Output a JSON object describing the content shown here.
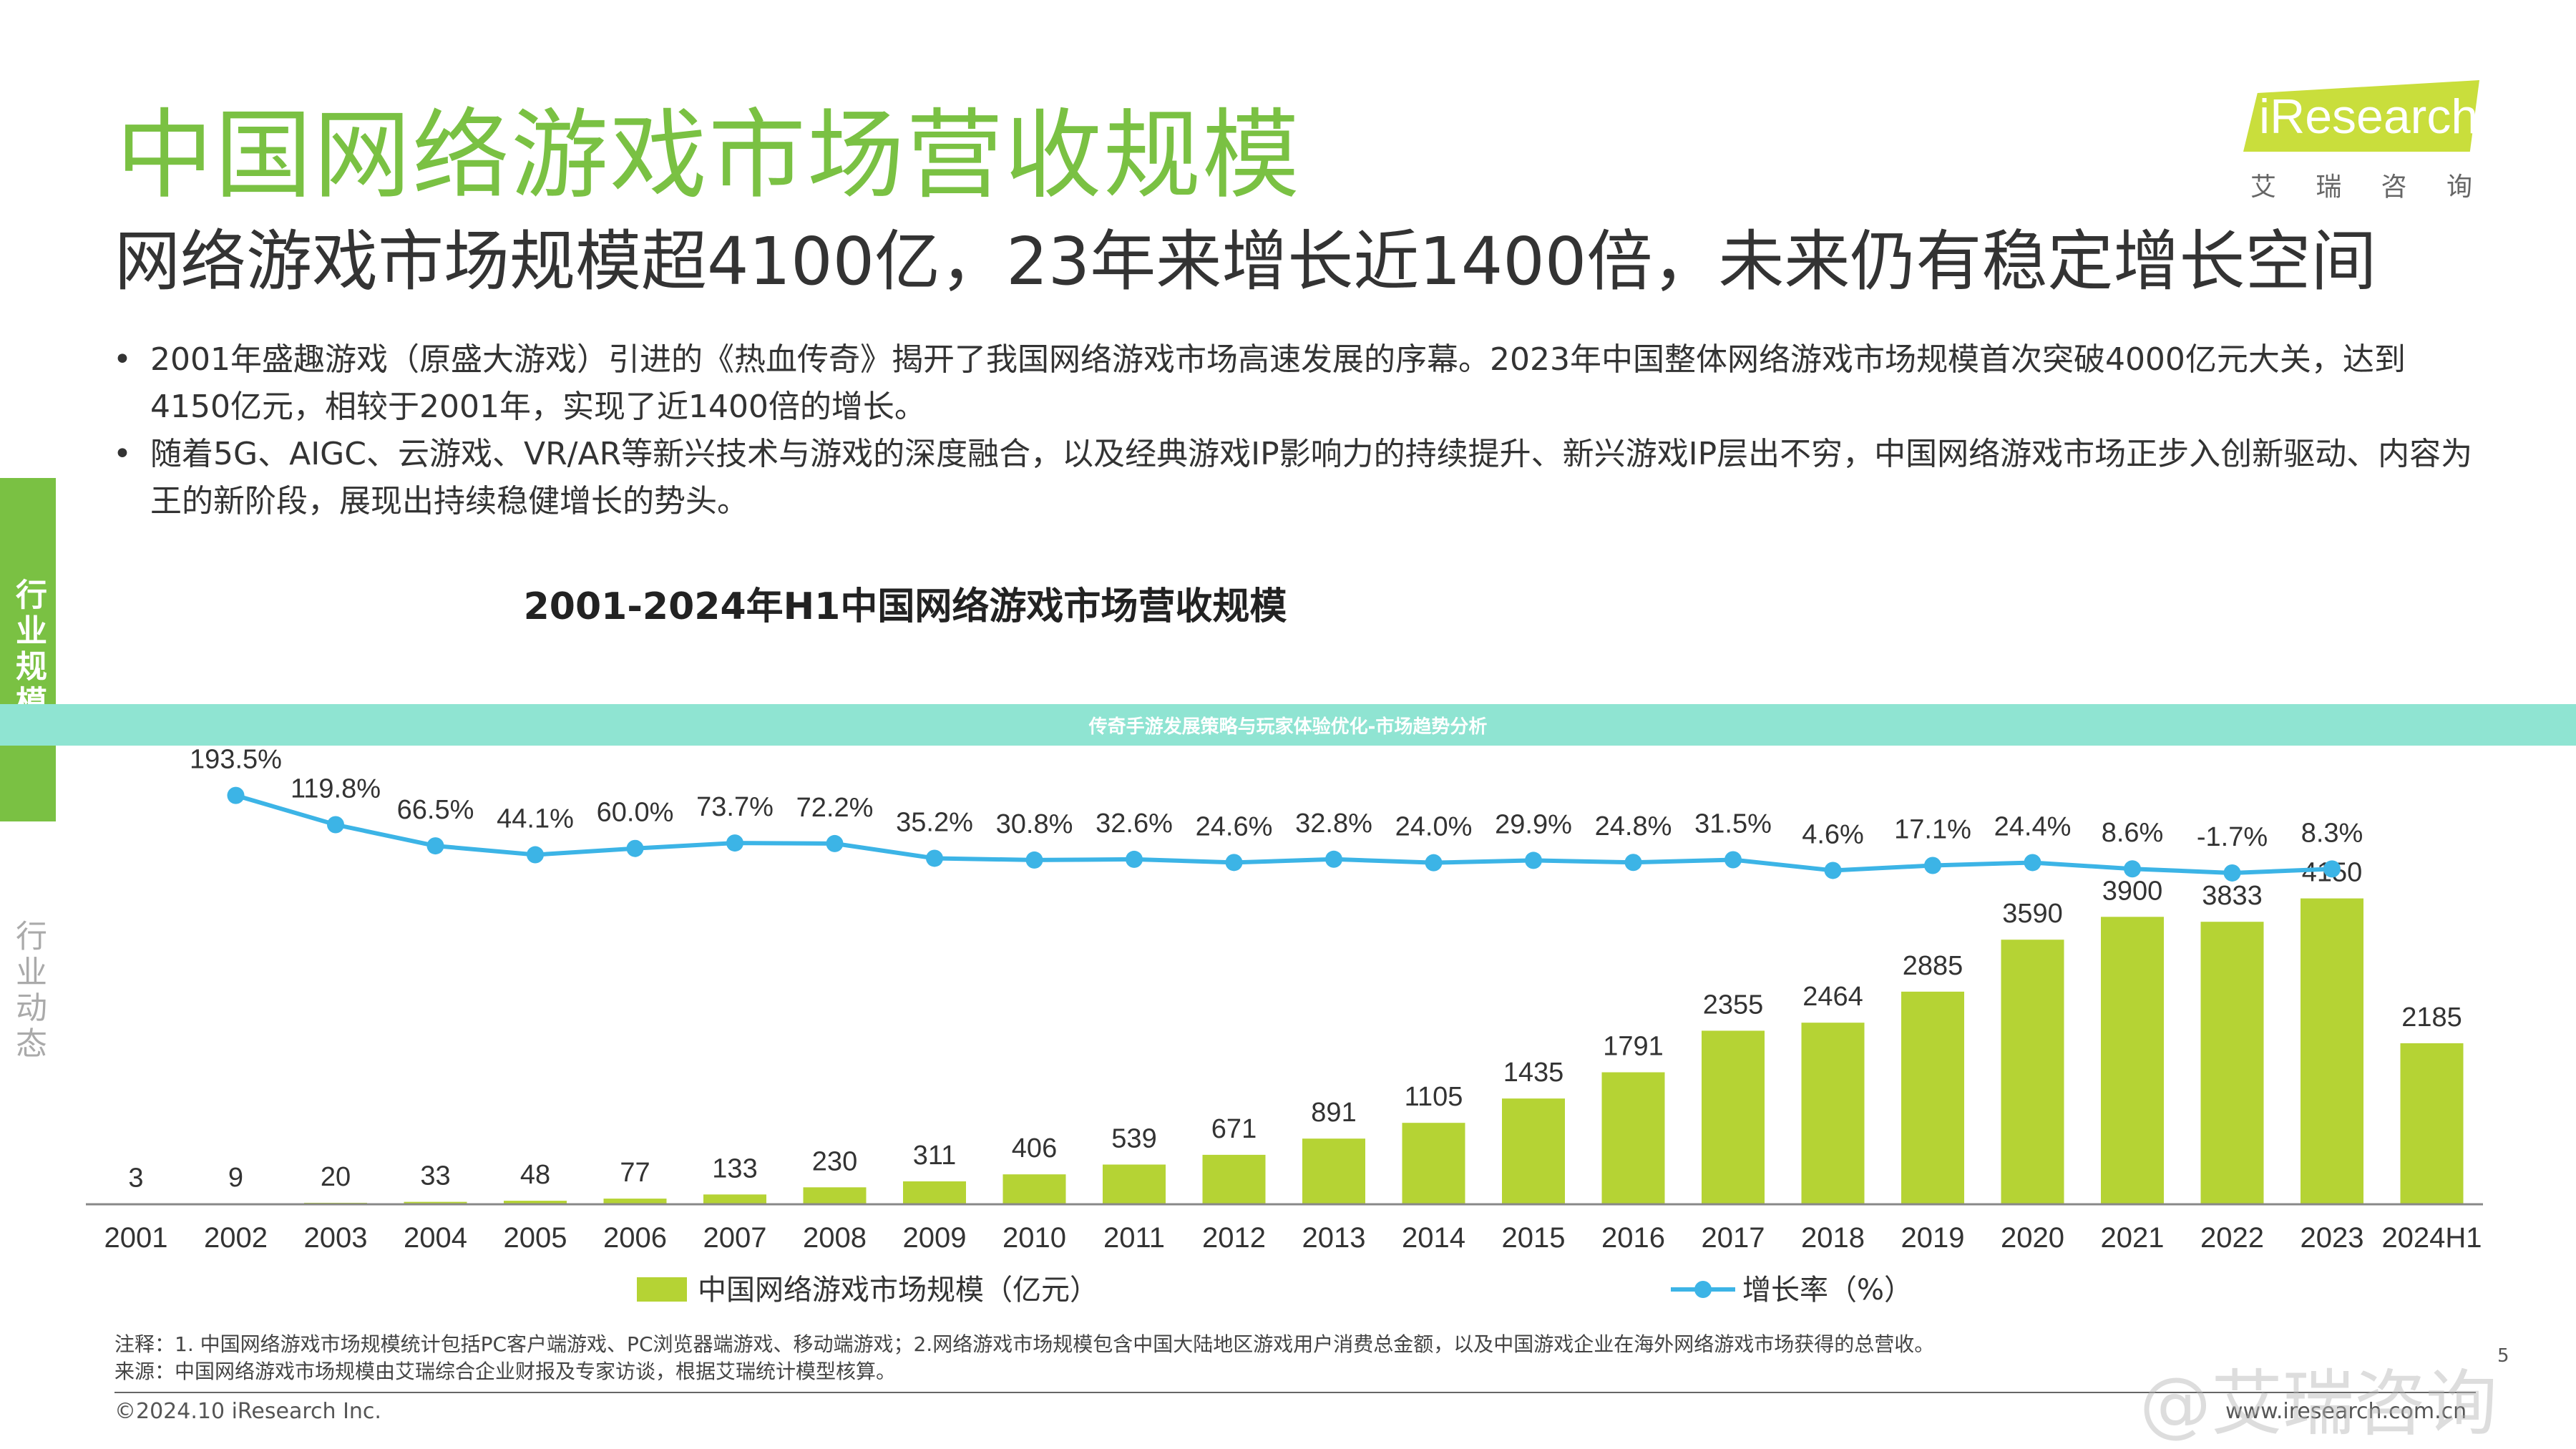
{
  "header": {
    "title": "中国网络游戏市场营收规模",
    "subtitle": "网络游戏市场规模超4100亿，23年来增长近1400倍，未来仍有稳定增长空间"
  },
  "logo": {
    "brand": "iResearch",
    "sub_chars": [
      "艾",
      "瑞",
      "咨",
      "询"
    ],
    "color": "#c9de3c"
  },
  "bullets": [
    "2001年盛趣游戏（原盛大游戏）引进的《热血传奇》揭开了我国网络游戏市场高速发展的序幕。2023年中国整体网络游戏市场规模首次突破4000亿元大关，达到4150亿元，相较于2001年，实现了近1400倍的增长。",
    "随着5G、AIGC、云游戏、VR/AR等新兴技术与游戏的深度融合，以及经典游戏IP影响力的持续提升、新兴游戏IP层出不穷，中国网络游戏市场正步入创新驱动、内容为王的新阶段，展现出持续稳健增长的势头。"
  ],
  "side": {
    "active_tab": "行业规模",
    "inactive_tab": "行业动态"
  },
  "overlay": {
    "text": "传奇手游发展策略与玩家体验优化-市场趋势分析"
  },
  "chart_data": {
    "type": "bar",
    "title": "2001-2024年H1中国网络游戏市场营收规模",
    "categories": [
      "2001",
      "2002",
      "2003",
      "2004",
      "2005",
      "2006",
      "2007",
      "2008",
      "2009",
      "2010",
      "2011",
      "2012",
      "2013",
      "2014",
      "2015",
      "2016",
      "2017",
      "2018",
      "2019",
      "2020",
      "2021",
      "2022",
      "2023",
      "2024H1"
    ],
    "series": [
      {
        "name": "中国网络游戏市场规模（亿元）",
        "type": "bar",
        "color": "#b5d334",
        "values": [
          3,
          9,
          20,
          33,
          48,
          77,
          133,
          230,
          311,
          406,
          539,
          671,
          891,
          1105,
          1435,
          1791,
          2355,
          2464,
          2885,
          3590,
          3900,
          3833,
          4150,
          2185
        ]
      },
      {
        "name": "增长率（%）",
        "type": "line",
        "color": "#3cb4e6",
        "values": [
          null,
          193.5,
          119.8,
          66.5,
          44.1,
          60.0,
          73.7,
          72.2,
          35.2,
          30.8,
          32.6,
          24.6,
          32.8,
          24.0,
          29.9,
          24.8,
          31.5,
          4.6,
          17.1,
          24.4,
          8.6,
          -1.7,
          8.3,
          null
        ],
        "labels": [
          "",
          "193.5%",
          "119.8%",
          "66.5%",
          "44.1%",
          "60.0%",
          "73.7%",
          "72.2%",
          "35.2%",
          "30.8%",
          "32.6%",
          "24.6%",
          "32.8%",
          "24.0%",
          "29.9%",
          "24.8%",
          "31.5%",
          "4.6%",
          "17.1%",
          "24.4%",
          "8.6%",
          "-1.7%",
          "8.3%",
          ""
        ]
      }
    ],
    "legend_position": "bottom",
    "grid": false
  },
  "notes": {
    "note": "注释：1. 中国网络游戏市场规模统计包括PC客户端游戏、PC浏览器端游戏、移动端游戏；2.网络游戏市场规模包含中国大陆地区游戏用户消费总金额，以及中国游戏企业在海外网络游戏市场获得的总营收。",
    "source": "来源：中国网络游戏市场规模由艾瑞综合企业财报及专家访谈，根据艾瑞统计模型核算。"
  },
  "footer": {
    "copyright": "©2024.10 iResearch Inc.",
    "site": "www.iresearch.com.cn",
    "page": "5"
  },
  "watermark": "@艾瑞咨询"
}
